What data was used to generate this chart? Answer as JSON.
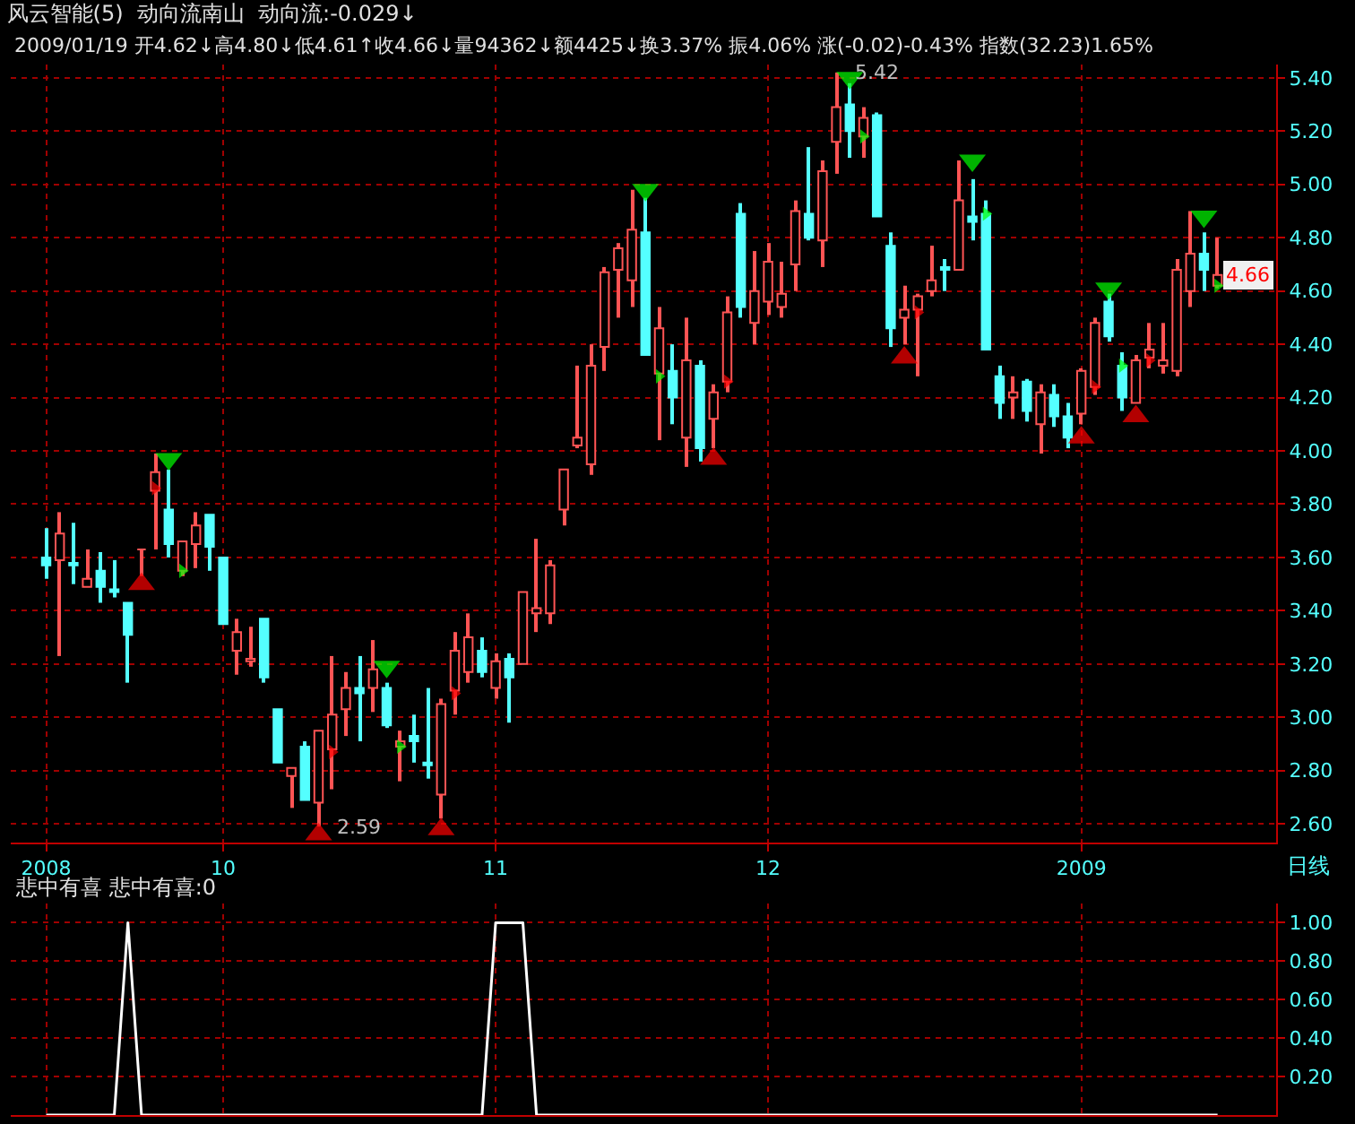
{
  "chart_data": [
    {
      "type": "candlestick",
      "title": "风云智能(5)  动向流南山  动向流:-0.029↓",
      "subtitle": "2009/01/19 开4.62↓高4.80↓低4.61↑收4.66↓量94362↓额4425↓换3.37% 振4.06% 涨(-0.02)-0.43% 指数(32.23)1.65%",
      "categories": [
        "2008",
        null,
        null,
        null,
        null,
        null,
        null,
        null,
        null,
        null,
        null,
        null,
        null,
        "10",
        null,
        null,
        null,
        null,
        null,
        null,
        null,
        null,
        null,
        null,
        null,
        null,
        null,
        null,
        null,
        null,
        null,
        null,
        null,
        "11",
        null,
        null,
        null,
        null,
        null,
        null,
        null,
        null,
        null,
        null,
        null,
        null,
        null,
        null,
        null,
        null,
        null,
        null,
        null,
        "12",
        null,
        null,
        null,
        null,
        null,
        null,
        null,
        null,
        null,
        null,
        null,
        null,
        null,
        null,
        null,
        null,
        null,
        null,
        null,
        null,
        null,
        null,
        "2009",
        null,
        null,
        null,
        null,
        null,
        null,
        null,
        null,
        null,
        null
      ],
      "ohlc": [
        [
          3.6,
          3.71,
          3.52,
          3.57
        ],
        [
          3.59,
          3.77,
          3.23,
          3.69
        ],
        [
          3.58,
          3.73,
          3.5,
          3.57
        ],
        [
          3.49,
          3.63,
          3.49,
          3.52
        ],
        [
          3.55,
          3.62,
          3.43,
          3.49
        ],
        [
          3.48,
          3.59,
          3.45,
          3.47
        ],
        [
          3.43,
          3.43,
          3.13,
          3.31
        ],
        [
          3.63,
          3.63,
          3.53,
          3.63
        ],
        [
          3.85,
          3.99,
          3.63,
          3.92
        ],
        [
          3.78,
          3.93,
          3.6,
          3.65
        ],
        [
          3.55,
          3.66,
          3.53,
          3.66
        ],
        [
          3.65,
          3.77,
          3.56,
          3.72
        ],
        [
          3.76,
          3.76,
          3.55,
          3.64
        ],
        [
          3.6,
          3.6,
          3.35,
          3.35
        ],
        [
          3.25,
          3.37,
          3.16,
          3.32
        ],
        [
          3.21,
          3.34,
          3.19,
          3.22
        ],
        [
          3.37,
          3.37,
          3.13,
          3.15
        ],
        [
          3.03,
          3.03,
          2.83,
          2.83
        ],
        [
          2.78,
          2.81,
          2.66,
          2.81
        ],
        [
          2.89,
          2.91,
          2.69,
          2.69
        ],
        [
          2.68,
          2.95,
          2.59,
          2.95
        ],
        [
          2.88,
          3.23,
          2.73,
          3.01
        ],
        [
          3.03,
          3.17,
          2.93,
          3.11
        ],
        [
          3.11,
          3.23,
          2.91,
          3.09
        ],
        [
          3.11,
          3.29,
          3.02,
          3.18
        ],
        [
          3.11,
          3.13,
          2.96,
          2.97
        ],
        [
          2.89,
          2.95,
          2.76,
          2.91
        ],
        [
          2.93,
          3.01,
          2.83,
          2.91
        ],
        [
          2.83,
          3.11,
          2.77,
          2.82
        ],
        [
          2.71,
          3.07,
          2.62,
          3.05
        ],
        [
          3.1,
          3.32,
          3.01,
          3.25
        ],
        [
          3.17,
          3.39,
          3.13,
          3.3
        ],
        [
          3.25,
          3.3,
          3.15,
          3.17
        ],
        [
          3.11,
          3.24,
          3.07,
          3.21
        ],
        [
          3.22,
          3.24,
          2.98,
          3.15
        ],
        [
          3.2,
          3.47,
          3.2,
          3.47
        ],
        [
          3.39,
          3.67,
          3.32,
          3.41
        ],
        [
          3.39,
          3.59,
          3.35,
          3.57
        ],
        [
          3.78,
          3.93,
          3.72,
          3.93
        ],
        [
          4.02,
          4.32,
          4.01,
          4.05
        ],
        [
          3.95,
          4.4,
          3.91,
          4.32
        ],
        [
          4.39,
          4.69,
          4.3,
          4.67
        ],
        [
          4.68,
          4.78,
          4.5,
          4.76
        ],
        [
          4.64,
          4.98,
          4.54,
          4.83
        ],
        [
          4.82,
          4.95,
          4.36,
          4.36
        ],
        [
          4.29,
          4.54,
          4.04,
          4.46
        ],
        [
          4.3,
          4.4,
          4.1,
          4.2
        ],
        [
          4.05,
          4.5,
          3.94,
          4.34
        ],
        [
          4.32,
          4.34,
          3.96,
          4.01
        ],
        [
          4.12,
          4.25,
          4.01,
          4.22
        ],
        [
          4.26,
          4.58,
          4.22,
          4.52
        ],
        [
          4.89,
          4.93,
          4.5,
          4.54
        ],
        [
          4.48,
          4.75,
          4.4,
          4.6
        ],
        [
          4.56,
          4.78,
          4.51,
          4.71
        ],
        [
          4.54,
          4.71,
          4.5,
          4.59
        ],
        [
          4.7,
          4.94,
          4.6,
          4.9
        ],
        [
          4.89,
          5.14,
          4.79,
          4.8
        ],
        [
          4.79,
          5.09,
          4.69,
          5.05
        ],
        [
          5.16,
          5.42,
          5.04,
          5.29
        ],
        [
          5.3,
          5.38,
          5.1,
          5.2
        ],
        [
          5.18,
          5.29,
          5.1,
          5.25
        ],
        [
          5.26,
          5.27,
          4.88,
          4.88
        ],
        [
          4.77,
          4.82,
          4.39,
          4.46
        ],
        [
          4.5,
          4.62,
          4.4,
          4.53
        ],
        [
          4.53,
          4.59,
          4.28,
          4.58
        ],
        [
          4.6,
          4.77,
          4.58,
          4.64
        ],
        [
          4.69,
          4.72,
          4.6,
          4.68
        ],
        [
          4.68,
          5.09,
          4.68,
          4.94
        ],
        [
          4.88,
          5.02,
          4.79,
          4.86
        ],
        [
          4.89,
          4.94,
          4.38,
          4.38
        ],
        [
          4.28,
          4.32,
          4.12,
          4.18
        ],
        [
          4.2,
          4.28,
          4.12,
          4.22
        ],
        [
          4.26,
          4.27,
          4.11,
          4.15
        ],
        [
          4.1,
          4.25,
          3.99,
          4.22
        ],
        [
          4.21,
          4.25,
          4.09,
          4.13
        ],
        [
          4.13,
          4.18,
          4.01,
          4.05
        ],
        [
          4.14,
          4.31,
          4.1,
          4.3
        ],
        [
          4.24,
          4.5,
          4.21,
          4.48
        ],
        [
          4.56,
          4.59,
          4.41,
          4.43
        ],
        [
          4.32,
          4.37,
          4.15,
          4.2
        ],
        [
          4.18,
          4.36,
          4.18,
          4.34
        ],
        [
          4.35,
          4.48,
          4.31,
          4.38
        ],
        [
          4.32,
          4.48,
          4.29,
          4.34
        ],
        [
          4.3,
          4.72,
          4.28,
          4.68
        ],
        [
          4.6,
          4.9,
          4.54,
          4.74
        ],
        [
          4.74,
          4.82,
          4.6,
          4.68
        ],
        [
          4.62,
          4.8,
          4.61,
          4.66
        ]
      ],
      "colors": [
        "#54ffff",
        "#ff5454",
        "#54ffff",
        "#ff5454",
        "#54ffff",
        "#54ffff",
        "#54ffff",
        "#ff5454",
        "#ff5454",
        "#54ffff",
        "#ff5454",
        "#ff5454",
        "#54ffff",
        "#54ffff",
        "#ff5454",
        "#ff5454",
        "#54ffff",
        "#54ffff",
        "#ff5454",
        "#54ffff",
        "#ff5454",
        "#ff5454",
        "#ff5454",
        "#54ffff",
        "#ff5454",
        "#54ffff",
        "#ff5454",
        "#54ffff",
        "#54ffff",
        "#ff5454",
        "#ff5454",
        "#ff5454",
        "#54ffff",
        "#ff5454",
        "#54ffff",
        "#ff5454",
        "#ff5454",
        "#ff5454",
        "#ff5454",
        "#ff5454",
        "#ff5454",
        "#ff5454",
        "#ff5454",
        "#ff5454",
        "#54ffff",
        "#ff5454",
        "#54ffff",
        "#ff5454",
        "#54ffff",
        "#ff5454",
        "#ff5454",
        "#54ffff",
        "#ff5454",
        "#ff5454",
        "#ff5454",
        "#ff5454",
        "#54ffff",
        "#ff5454",
        "#ff5454",
        "#54ffff",
        "#ff5454",
        "#54ffff",
        "#54ffff",
        "#ff5454",
        "#ff5454",
        "#ff5454",
        "#54ffff",
        "#ff5454",
        "#54ffff",
        "#54ffff",
        "#54ffff",
        "#ff5454",
        "#54ffff",
        "#ff5454",
        "#54ffff",
        "#54ffff",
        "#ff5454",
        "#ff5454",
        "#54ffff",
        "#54ffff",
        "#ff5454",
        "#ff5454",
        "#ff5454",
        "#ff5454",
        "#ff5454",
        "#54ffff",
        "#ff5454"
      ],
      "series": [
        {
          "type": "scatter",
          "marker": "triangle",
          "color": "#ff0000",
          "values": [
            null,
            null,
            null,
            null,
            null,
            null,
            null,
            3.5,
            null,
            null,
            null,
            null,
            null,
            null,
            null,
            null,
            null,
            null,
            null,
            null,
            2.56,
            null,
            null,
            null,
            null,
            null,
            null,
            null,
            null,
            2.58,
            null,
            null,
            null,
            null,
            null,
            null,
            null,
            null,
            null,
            null,
            null,
            null,
            null,
            null,
            null,
            null,
            null,
            null,
            null,
            3.97,
            null,
            null,
            null,
            null,
            null,
            null,
            null,
            null,
            null,
            null,
            null,
            null,
            null,
            4.35,
            null,
            null,
            null,
            null,
            null,
            null,
            null,
            null,
            null,
            null,
            null,
            null,
            4.05,
            null,
            null,
            null,
            4.13,
            null,
            null,
            null,
            null,
            null,
            null
          ]
        },
        {
          "type": "scatter",
          "marker": "triangle",
          "color": "#00ff00",
          "values": [
            null,
            null,
            null,
            null,
            null,
            null,
            null,
            null,
            null,
            3.97,
            null,
            null,
            null,
            null,
            null,
            null,
            null,
            null,
            null,
            null,
            null,
            null,
            null,
            null,
            null,
            3.19,
            null,
            null,
            null,
            null,
            null,
            null,
            null,
            null,
            null,
            null,
            null,
            null,
            null,
            null,
            null,
            null,
            null,
            null,
            4.98,
            null,
            null,
            null,
            null,
            null,
            null,
            null,
            null,
            null,
            null,
            null,
            null,
            null,
            null,
            5.4,
            null,
            null,
            null,
            null,
            null,
            null,
            null,
            null,
            5.09,
            null,
            null,
            null,
            null,
            null,
            null,
            null,
            null,
            null,
            4.61,
            null,
            null,
            null,
            null,
            null,
            null,
            4.88,
            null
          ]
        },
        {
          "type": "scatter",
          "marker": "triangle",
          "color": "#ff0000",
          "values": [
            null,
            null,
            null,
            null,
            null,
            null,
            null,
            null,
            3.86,
            null,
            null,
            null,
            null,
            null,
            null,
            null,
            null,
            null,
            null,
            null,
            null,
            2.87,
            null,
            null,
            null,
            null,
            null,
            null,
            null,
            null,
            3.09,
            null,
            null,
            null,
            null,
            null,
            null,
            null,
            null,
            null,
            null,
            null,
            null,
            null,
            null,
            null,
            null,
            null,
            null,
            null,
            4.26,
            null,
            null,
            null,
            null,
            null,
            null,
            null,
            null,
            null,
            null,
            null,
            null,
            null,
            4.52,
            null,
            null,
            null,
            null,
            null,
            null,
            null,
            null,
            null,
            null,
            null,
            null,
            4.24,
            null,
            null,
            null,
            4.34,
            null,
            null,
            null,
            null,
            null
          ]
        },
        {
          "type": "scatter",
          "marker": "triangle",
          "color": "#00ff00",
          "values": [
            null,
            null,
            null,
            null,
            null,
            null,
            null,
            null,
            null,
            null,
            3.55,
            null,
            null,
            null,
            null,
            null,
            null,
            null,
            null,
            null,
            null,
            null,
            null,
            null,
            null,
            null,
            2.89,
            null,
            null,
            null,
            null,
            null,
            null,
            null,
            null,
            null,
            null,
            null,
            null,
            null,
            null,
            null,
            null,
            null,
            null,
            4.28,
            null,
            null,
            null,
            null,
            null,
            null,
            null,
            null,
            null,
            null,
            null,
            null,
            null,
            null,
            5.18,
            null,
            null,
            null,
            null,
            null,
            null,
            null,
            null,
            4.89,
            null,
            null,
            null,
            null,
            null,
            null,
            null,
            null,
            null,
            4.32,
            null,
            null,
            null,
            null,
            null,
            null,
            4.62
          ]
        }
      ],
      "ylim": [
        2.53,
        5.45
      ],
      "yticks": [
        {
          "value": 2.6,
          "label": "2.60"
        },
        {
          "value": 2.8,
          "label": "2.80"
        },
        {
          "value": 3.0,
          "label": "3.00"
        },
        {
          "value": 3.2,
          "label": "3.20"
        },
        {
          "value": 3.4,
          "label": "3.40"
        },
        {
          "value": 3.6,
          "label": "3.60"
        },
        {
          "value": 3.8,
          "label": "3.80"
        },
        {
          "value": 4.0,
          "label": "4.00"
        },
        {
          "value": 4.2,
          "label": "4.20"
        },
        {
          "value": 4.4,
          "label": "4.40"
        },
        {
          "value": 4.6,
          "label": "4.60"
        },
        {
          "value": 4.8,
          "label": "4.80"
        },
        {
          "value": 5.0,
          "label": "5.00"
        },
        {
          "value": 5.2,
          "label": "5.20"
        },
        {
          "value": 5.4,
          "label": "5.40"
        }
      ],
      "grid": true,
      "annotations": [
        "5.42",
        "2.59",
        "4.66",
        "日线"
      ]
    },
    {
      "type": "line",
      "title": "悲中有喜 悲中有喜:0",
      "categories": [
        "2008",
        null,
        null,
        null,
        null,
        null,
        null,
        null,
        null,
        null,
        null,
        null,
        null,
        "10",
        null,
        null,
        null,
        null,
        null,
        null,
        null,
        null,
        null,
        null,
        null,
        null,
        null,
        null,
        null,
        null,
        null,
        null,
        null,
        "11",
        null,
        null,
        null,
        null,
        null,
        null,
        null,
        null,
        null,
        null,
        null,
        null,
        null,
        null,
        null,
        null,
        null,
        null,
        null,
        "12",
        null,
        null,
        null,
        null,
        null,
        null,
        null,
        null,
        null,
        null,
        null,
        null,
        null,
        null,
        null,
        null,
        null,
        null,
        null,
        null,
        null,
        null,
        "2009",
        null,
        null,
        null,
        null,
        null,
        null,
        null,
        null,
        null,
        null
      ],
      "series": [
        {
          "color": "#ffffff",
          "values": [
            0,
            0,
            0,
            0,
            0,
            0,
            1,
            0,
            0,
            0,
            0,
            0,
            0,
            0,
            0,
            0,
            0,
            0,
            0,
            0,
            0,
            0,
            0,
            0,
            0,
            0,
            0,
            0,
            0,
            0,
            0,
            0,
            0,
            1,
            1,
            1,
            0,
            0,
            0,
            0,
            0,
            0,
            0,
            0,
            0,
            0,
            0,
            0,
            0,
            0,
            0,
            0,
            0,
            0,
            0,
            0,
            0,
            0,
            0,
            0,
            0,
            0,
            0,
            0,
            0,
            0,
            0,
            0,
            0,
            0,
            0,
            0,
            0,
            0,
            0,
            0,
            0,
            0,
            0,
            0,
            0,
            0,
            0,
            0,
            0,
            0,
            0
          ]
        }
      ],
      "ylim": [
        0,
        1.1
      ],
      "yticks": [
        {
          "value": 0.2,
          "label": "0.20"
        },
        {
          "value": 0.4,
          "label": "0.40"
        },
        {
          "value": 0.6,
          "label": "0.60"
        },
        {
          "value": 0.8,
          "label": "0.80"
        },
        {
          "value": 1.0,
          "label": "1.00"
        }
      ],
      "grid": true,
      "tick_labels": "y"
    }
  ]
}
